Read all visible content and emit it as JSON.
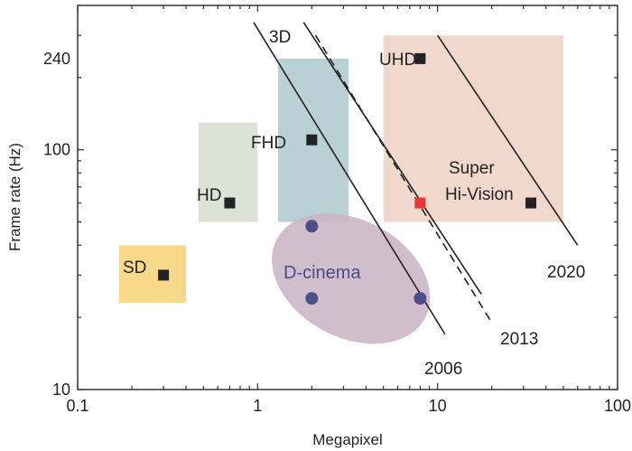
{
  "chart_data": {
    "type": "scatter",
    "xlabel": "Megapixel",
    "ylabel": "Frame rate (Hz)",
    "x_scale": "log",
    "y_scale": "log",
    "xlim": [
      0.1,
      100
    ],
    "ylim": [
      10,
      400
    ],
    "grid": false,
    "x_ticks": [
      "0.1",
      "1",
      "10",
      "100"
    ],
    "y_ticks": [
      "10",
      "100",
      "240"
    ],
    "regions": [
      {
        "label": "SD",
        "x": [
          0.17,
          0.4
        ],
        "y": [
          23,
          40
        ],
        "color": "#f8d98a"
      },
      {
        "label": "HD",
        "x": [
          0.47,
          1.0
        ],
        "y": [
          50,
          130
        ],
        "color": "#dde1d6"
      },
      {
        "label": "FHD",
        "x": [
          1.3,
          3.2
        ],
        "y": [
          50,
          240
        ],
        "color": "#b9d0d5"
      },
      {
        "label": "UHD / Super Hi-Vision",
        "x": [
          5.0,
          50
        ],
        "y": [
          50,
          300
        ],
        "color": "#f1d8cc"
      }
    ],
    "ellipse": {
      "label": "D-cinema",
      "color": "#c9b3c4"
    },
    "points": [
      {
        "label": "SD",
        "x": 0.3,
        "y": 30,
        "marker": "square",
        "color": "#222222"
      },
      {
        "label": "HD",
        "x": 0.7,
        "y": 60,
        "marker": "square",
        "color": "#222222"
      },
      {
        "label": "FHD",
        "x": 2.0,
        "y": 110,
        "marker": "square",
        "color": "#222222"
      },
      {
        "label": "UHD",
        "x": 8.0,
        "y": 240,
        "marker": "square",
        "color": "#222222"
      },
      {
        "label": "",
        "x": 8.0,
        "y": 60,
        "marker": "square",
        "color": "#e53935"
      },
      {
        "label": "Super Hi-Vision",
        "x": 33,
        "y": 60,
        "marker": "square",
        "color": "#222222"
      },
      {
        "label": "",
        "x": 2.0,
        "y": 48,
        "marker": "circle",
        "color": "#4b4f8c"
      },
      {
        "label": "",
        "x": 2.0,
        "y": 24,
        "marker": "circle",
        "color": "#4b4f8c"
      },
      {
        "label": "",
        "x": 8.0,
        "y": 24,
        "marker": "circle",
        "color": "#4b4f8c"
      }
    ],
    "trend_lines": [
      {
        "label": "2006",
        "style": "solid",
        "x": [
          0.95,
          11
        ],
        "y": [
          340,
          17
        ]
      },
      {
        "label": "2013",
        "style": "solid",
        "x": [
          1.8,
          17.5
        ],
        "y": [
          340,
          25
        ]
      },
      {
        "label": "3D",
        "style": "dashed",
        "x": [
          2.1,
          20
        ],
        "y": [
          300,
          19
        ]
      },
      {
        "label": "2020",
        "style": "solid",
        "x": [
          10,
          60
        ],
        "y": [
          300,
          40
        ]
      }
    ],
    "annotations": {
      "sd": "SD",
      "hd": "HD",
      "fhd": "FHD",
      "uhd": "UHD",
      "shv1": "Super",
      "shv2": "Hi-Vision",
      "dcinema": "D-cinema",
      "l3d": "3D",
      "l2006": "2006",
      "l2013": "2013",
      "l2020": "2020"
    }
  }
}
